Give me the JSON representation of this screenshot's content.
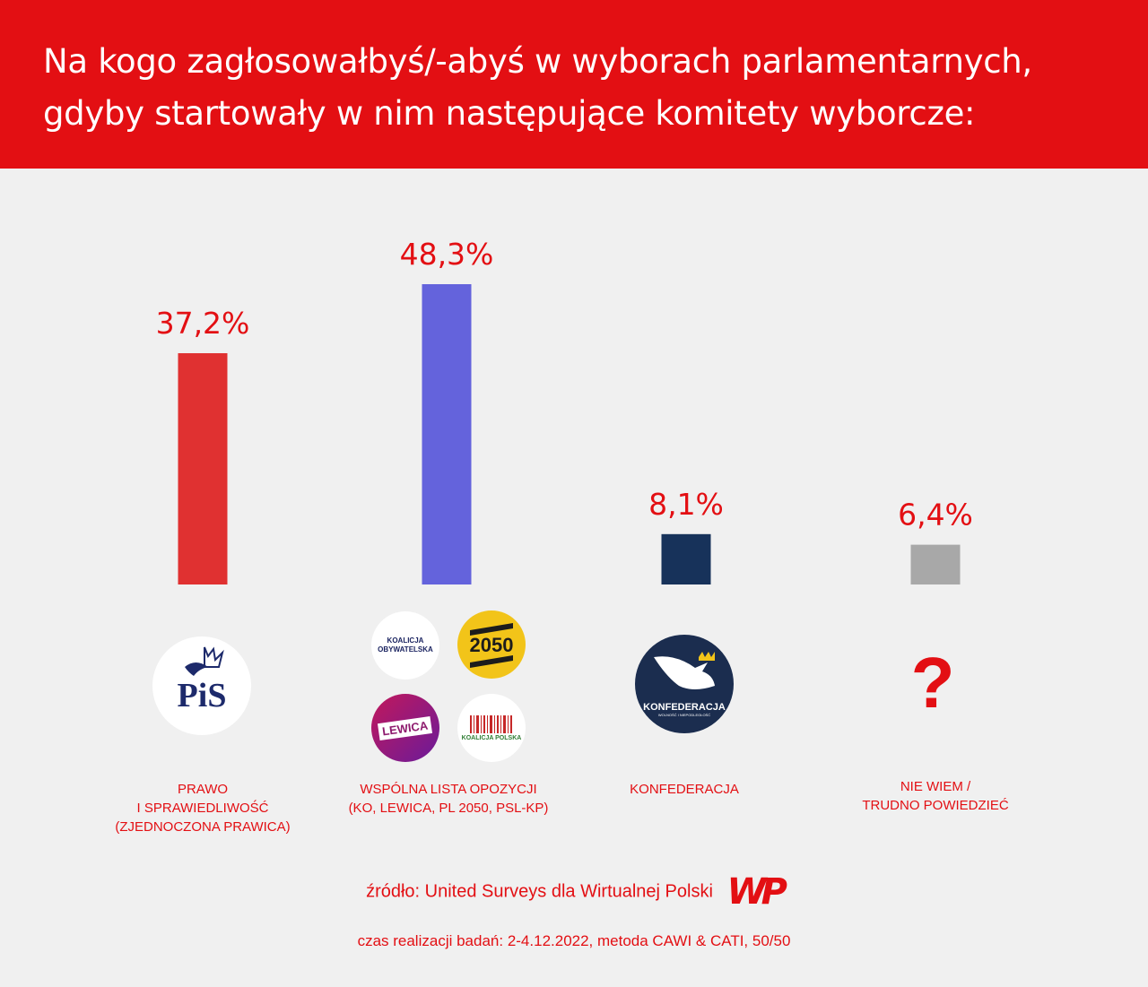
{
  "title": {
    "line1": "Na kogo zagłosowałbyś/-abyś w wyborach parlamentarnych,",
    "line2": "gdyby startowały w nim następujące komitety wyborcze:"
  },
  "colors": {
    "header": "#e30f13",
    "accent": "#e30f13",
    "pis": "#e03131",
    "opozycja": "#6463dc",
    "konfederacja": "#17325a",
    "niewiem": "#a8a8a8"
  },
  "chart_data": {
    "type": "bar",
    "categories": [
      "PRAWO I SPRAWIEDLIWOŚĆ (ZJEDNOCZONA PRAWICA)",
      "WSPÓLNA LISTA OPOZYCJI (KO, LEWICA, PL 2050, PSL-KP)",
      "KONFEDERACJA",
      "NIE WIEM / TRUDNO POWIEDZIEĆ"
    ],
    "values": [
      37.2,
      48.3,
      8.1,
      6.4
    ],
    "value_labels": [
      "37,2%",
      "48,3%",
      "8,1%",
      "6,4%"
    ],
    "bar_colors": [
      "#e03131",
      "#6463dc",
      "#17325a",
      "#a8a8a8"
    ],
    "title": "Na kogo zagłosowałbyś/-abyś w wyborach parlamentarnych, gdyby startowały w nim następujące komitety wyborcze:",
    "xlabel": "",
    "ylabel": "",
    "ylim": [
      0,
      48.3
    ],
    "grid": false,
    "legend": "none"
  },
  "categories_text": [
    [
      "PRAWO",
      "I SPRAWIEDLIWOŚĆ",
      "(ZJEDNOCZONA PRAWICA)"
    ],
    [
      "WSPÓLNA LISTA OPOZYCJI",
      "(KO, LEWICA, PL 2050, PSL-KP)"
    ],
    [
      "KONFEDERACJA"
    ],
    [
      "NIE WIEM /",
      "TRUDNO POWIEDZIEĆ"
    ]
  ],
  "logos": {
    "pis": "PiS",
    "ko_line1": "KOALICJA",
    "ko_line2": "OBYWATELSKA",
    "pl2050": "2050",
    "lewica": "LEWICA",
    "psl": "KOALICJA POLSKA",
    "konf_line1": "KONFEDERACJA",
    "konf_line2": "WOLNOŚĆ I NIEPODLEGŁOŚĆ",
    "unknown": "?"
  },
  "footer": {
    "source": "źródło: United Surveys dla Wirtualnej Polski",
    "brand": "WP",
    "method": "czas realizacji badań: 2-4.12.2022, metoda CAWI & CATI, 50/50"
  }
}
